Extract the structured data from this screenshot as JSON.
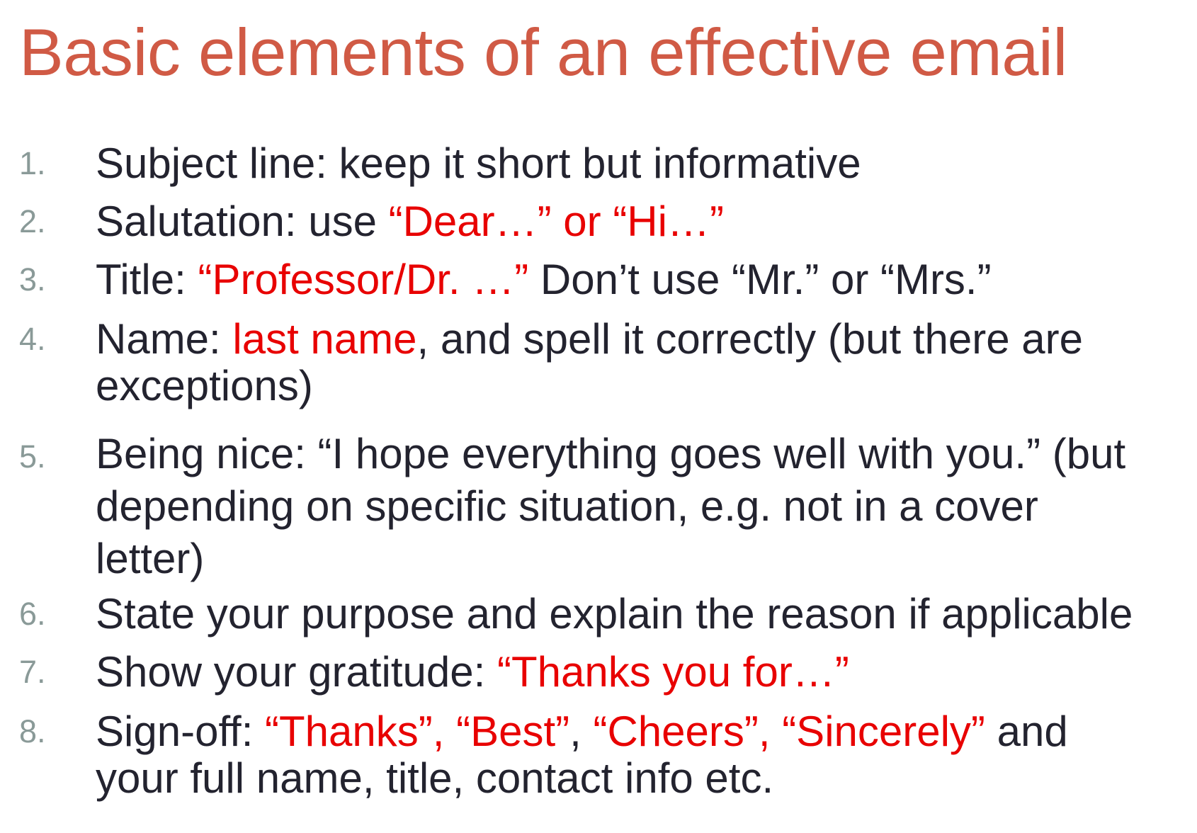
{
  "title": "Basic elements of an effective email",
  "colors": {
    "title": "#d05a45",
    "body_text": "#23232f",
    "number": "#8a9a98",
    "highlight": "#e80000"
  },
  "items": [
    {
      "number": "1.",
      "lines": [
        [
          {
            "text": "Subject line: keep it short but informative",
            "highlight": false
          }
        ]
      ]
    },
    {
      "number": "2.",
      "lines": [
        [
          {
            "text": "Salutation: use ",
            "highlight": false
          },
          {
            "text": "“Dear…” or “Hi…”",
            "highlight": true
          }
        ]
      ]
    },
    {
      "number": "3.",
      "lines": [
        [
          {
            "text": "Title: ",
            "highlight": false
          },
          {
            "text": "“Professor/Dr. …”",
            "highlight": true
          },
          {
            "text": " Don’t use “Mr.” or “Mrs.”",
            "highlight": false
          }
        ]
      ]
    },
    {
      "number": "4.",
      "lines": [
        [
          {
            "text": "Name: ",
            "highlight": false
          },
          {
            "text": "last name",
            "highlight": true
          },
          {
            "text": ", and spell it correctly (but there are",
            "highlight": false
          }
        ],
        [
          {
            "text": "exceptions)",
            "highlight": false
          }
        ]
      ]
    },
    {
      "number": "5.",
      "lines": [
        [
          {
            "text": "Being nice: “I hope everything goes well with you.” (but",
            "highlight": false
          }
        ],
        [
          {
            "text": "depending on specific situation, e.g. not in a cover",
            "highlight": false
          }
        ],
        [
          {
            "text": "letter)",
            "highlight": false
          }
        ]
      ]
    },
    {
      "number": "6.",
      "lines": [
        [
          {
            "text": "State your purpose and explain the reason if applicable",
            "highlight": false
          }
        ]
      ]
    },
    {
      "number": "7.",
      "lines": [
        [
          {
            "text": "Show your gratitude: ",
            "highlight": false
          },
          {
            "text": "“Thanks you for…”",
            "highlight": true
          }
        ]
      ]
    },
    {
      "number": "8.",
      "lines": [
        [
          {
            "text": "Sign-off: ",
            "highlight": false
          },
          {
            "text": "“Thanks”, “Best”",
            "highlight": true
          },
          {
            "text": ", ",
            "highlight": false
          },
          {
            "text": "“Cheers”, “Sincerely”",
            "highlight": true
          },
          {
            "text": " and",
            "highlight": false
          }
        ],
        [
          {
            "text": "your full name, title, contact info etc.",
            "highlight": false
          }
        ]
      ]
    }
  ]
}
